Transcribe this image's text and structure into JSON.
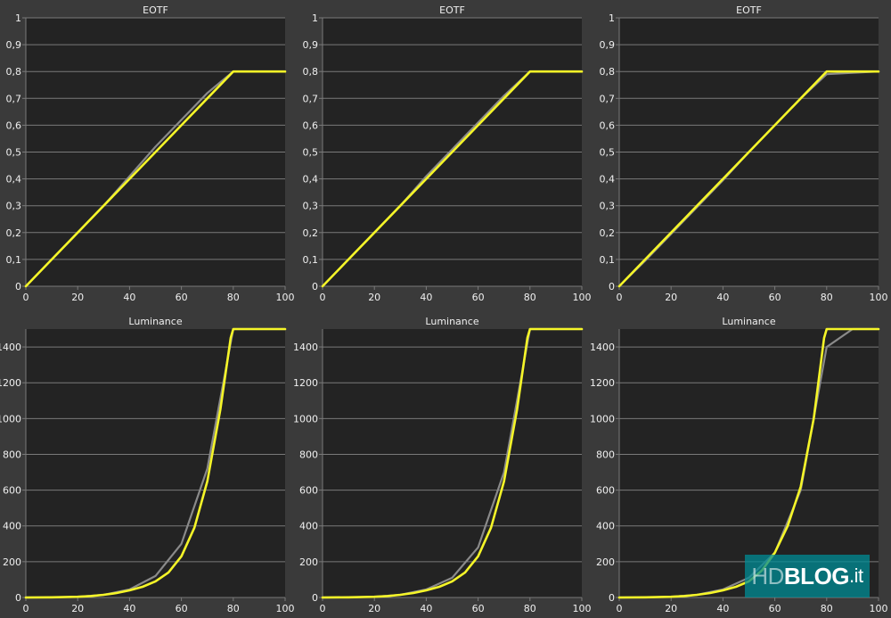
{
  "colors": {
    "background": "#3a3a3a",
    "plot_background": "#232323",
    "grid": "#7a7a7a",
    "text": "#f0f0f0",
    "target_series": "#8a8a8a",
    "measured_series": "#f5f528"
  },
  "watermark": {
    "hd": "HD",
    "blog": "BLOG",
    "tld": ".it"
  },
  "chart_data": [
    {
      "type": "line",
      "title": "EOTF",
      "xlabel": "",
      "ylabel": "",
      "xlim": [
        0,
        100
      ],
      "ylim": [
        0,
        1
      ],
      "xticks": [
        0,
        20,
        40,
        60,
        80,
        100
      ],
      "yticks": [
        0,
        0.1,
        0.2,
        0.3,
        0.4,
        0.5,
        0.6,
        0.7,
        0.8,
        0.9,
        1
      ],
      "yticklabels": [
        "0",
        "0,1",
        "0,2",
        "0,3",
        "0,4",
        "0,5",
        "0,6",
        "0,7",
        "0,8",
        "0,9",
        "1"
      ],
      "grid": true,
      "series": [
        {
          "role": "target",
          "color": "#8a8a8a",
          "x": [
            0,
            10,
            20,
            30,
            40,
            50,
            60,
            70,
            80,
            100
          ],
          "y": [
            0,
            0.1,
            0.2,
            0.3,
            0.41,
            0.52,
            0.62,
            0.72,
            0.8,
            0.8
          ]
        },
        {
          "role": "measured",
          "color": "#f5f528",
          "x": [
            0,
            10,
            20,
            30,
            40,
            50,
            60,
            70,
            80,
            100
          ],
          "y": [
            0,
            0.1,
            0.2,
            0.3,
            0.4,
            0.5,
            0.6,
            0.7,
            0.8,
            0.8
          ]
        }
      ]
    },
    {
      "type": "line",
      "title": "EOTF",
      "xlabel": "",
      "ylabel": "",
      "xlim": [
        0,
        100
      ],
      "ylim": [
        0,
        1
      ],
      "xticks": [
        0,
        20,
        40,
        60,
        80,
        100
      ],
      "yticks": [
        0,
        0.1,
        0.2,
        0.3,
        0.4,
        0.5,
        0.6,
        0.7,
        0.8,
        0.9,
        1
      ],
      "yticklabels": [
        "0",
        "0,1",
        "0,2",
        "0,3",
        "0,4",
        "0,5",
        "0,6",
        "0,7",
        "0,8",
        "0,9",
        "1"
      ],
      "grid": true,
      "series": [
        {
          "role": "target",
          "color": "#8a8a8a",
          "x": [
            0,
            10,
            20,
            30,
            40,
            50,
            60,
            70,
            80,
            100
          ],
          "y": [
            0,
            0.1,
            0.2,
            0.3,
            0.41,
            0.51,
            0.61,
            0.71,
            0.8,
            0.8
          ]
        },
        {
          "role": "measured",
          "color": "#f5f528",
          "x": [
            0,
            10,
            20,
            30,
            40,
            50,
            60,
            70,
            80,
            100
          ],
          "y": [
            0,
            0.1,
            0.2,
            0.3,
            0.4,
            0.5,
            0.6,
            0.7,
            0.8,
            0.8
          ]
        }
      ]
    },
    {
      "type": "line",
      "title": "EOTF",
      "xlabel": "",
      "ylabel": "",
      "xlim": [
        0,
        100
      ],
      "ylim": [
        0,
        1
      ],
      "xticks": [
        0,
        20,
        40,
        60,
        80,
        100
      ],
      "yticks": [
        0,
        0.1,
        0.2,
        0.3,
        0.4,
        0.5,
        0.6,
        0.7,
        0.8,
        0.9,
        1
      ],
      "yticklabels": [
        "0",
        "0,1",
        "0,2",
        "0,3",
        "0,4",
        "0,5",
        "0,6",
        "0,7",
        "0,8",
        "0,9",
        "1"
      ],
      "grid": true,
      "series": [
        {
          "role": "target",
          "color": "#8a8a8a",
          "x": [
            0,
            10,
            20,
            30,
            40,
            50,
            60,
            70,
            80,
            100
          ],
          "y": [
            0,
            0.095,
            0.195,
            0.295,
            0.395,
            0.5,
            0.6,
            0.7,
            0.79,
            0.8
          ]
        },
        {
          "role": "measured",
          "color": "#f5f528",
          "x": [
            0,
            10,
            20,
            30,
            40,
            50,
            60,
            70,
            80,
            100
          ],
          "y": [
            0,
            0.1,
            0.2,
            0.3,
            0.4,
            0.5,
            0.6,
            0.7,
            0.8,
            0.8
          ]
        }
      ]
    },
    {
      "type": "line",
      "title": "Luminance",
      "xlabel": "",
      "ylabel": "",
      "xlim": [
        0,
        100
      ],
      "ylim": [
        0,
        1500
      ],
      "xticks": [
        0,
        20,
        40,
        60,
        80,
        100
      ],
      "yticks": [
        0,
        200,
        400,
        600,
        800,
        1000,
        1200,
        1400
      ],
      "grid": true,
      "series": [
        {
          "role": "target",
          "color": "#8a8a8a",
          "x": [
            0,
            10,
            20,
            30,
            40,
            50,
            60,
            70,
            80,
            100
          ],
          "y": [
            0,
            1,
            4,
            15,
            45,
            120,
            300,
            720,
            1500,
            1500
          ]
        },
        {
          "role": "measured",
          "color": "#f5f528",
          "x": [
            0,
            10,
            20,
            25,
            30,
            35,
            40,
            45,
            50,
            55,
            60,
            65,
            70,
            75,
            79,
            80,
            100
          ],
          "y": [
            0,
            1,
            4,
            8,
            15,
            25,
            40,
            60,
            90,
            140,
            230,
            390,
            650,
            1050,
            1450,
            1500,
            1500
          ]
        }
      ]
    },
    {
      "type": "line",
      "title": "Luminance",
      "xlabel": "",
      "ylabel": "",
      "xlim": [
        0,
        100
      ],
      "ylim": [
        0,
        1500
      ],
      "xticks": [
        0,
        20,
        40,
        60,
        80,
        100
      ],
      "yticks": [
        0,
        200,
        400,
        600,
        800,
        1000,
        1200,
        1400
      ],
      "grid": true,
      "series": [
        {
          "role": "target",
          "color": "#8a8a8a",
          "x": [
            0,
            10,
            20,
            30,
            40,
            50,
            60,
            70,
            80,
            100
          ],
          "y": [
            0,
            1,
            4,
            15,
            45,
            110,
            280,
            700,
            1500,
            1500
          ]
        },
        {
          "role": "measured",
          "color": "#f5f528",
          "x": [
            0,
            10,
            20,
            25,
            30,
            35,
            40,
            45,
            50,
            55,
            60,
            65,
            70,
            75,
            79,
            80,
            100
          ],
          "y": [
            0,
            1,
            4,
            8,
            15,
            25,
            40,
            60,
            90,
            140,
            230,
            390,
            650,
            1050,
            1450,
            1500,
            1500
          ]
        }
      ]
    },
    {
      "type": "line",
      "title": "Luminance",
      "xlabel": "",
      "ylabel": "",
      "xlim": [
        0,
        100
      ],
      "ylim": [
        0,
        1500
      ],
      "xticks": [
        0,
        20,
        40,
        60,
        80,
        100
      ],
      "yticks": [
        0,
        200,
        400,
        600,
        800,
        1000,
        1200,
        1400
      ],
      "grid": true,
      "series": [
        {
          "role": "target",
          "color": "#8a8a8a",
          "x": [
            0,
            10,
            20,
            30,
            40,
            50,
            60,
            70,
            80,
            90,
            100
          ],
          "y": [
            0,
            1,
            4,
            15,
            45,
            110,
            250,
            600,
            1400,
            1500,
            1500
          ]
        },
        {
          "role": "measured",
          "color": "#f5f528",
          "x": [
            0,
            10,
            20,
            25,
            30,
            35,
            40,
            45,
            50,
            55,
            60,
            65,
            70,
            75,
            79,
            80,
            100
          ],
          "y": [
            0,
            1,
            4,
            8,
            15,
            25,
            40,
            60,
            90,
            150,
            250,
            400,
            620,
            1000,
            1450,
            1500,
            1500
          ]
        }
      ]
    }
  ]
}
